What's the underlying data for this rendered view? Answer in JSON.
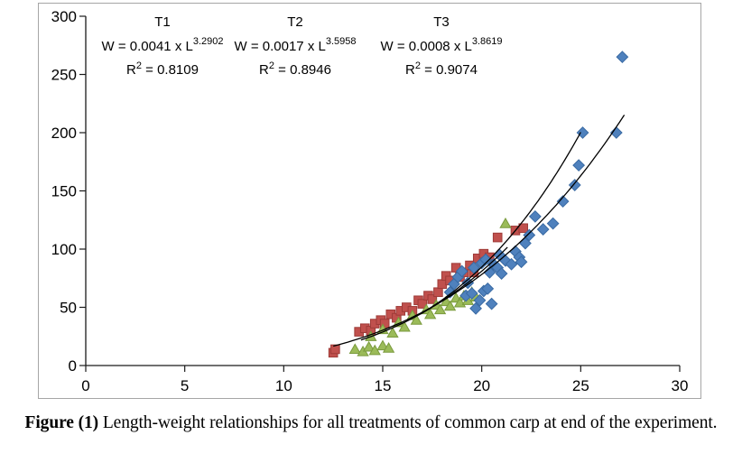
{
  "caption": {
    "label": "Figure (1)",
    "text": " Length-weight relationships for all treatments of common carp at end of the experiment."
  },
  "chart_data": {
    "type": "scatter",
    "title": "",
    "xlabel": "",
    "ylabel": "",
    "xlim": [
      0,
      30
    ],
    "ylim": [
      0,
      300
    ],
    "x_ticks": [
      0,
      5,
      10,
      15,
      20,
      25,
      30
    ],
    "y_ticks": [
      0,
      50,
      100,
      150,
      200,
      250,
      300
    ],
    "grid": false,
    "legend_position": "none",
    "axis_color": "#1a1a1a",
    "border_color": "#a6a6a6",
    "trendline_color": "#000000",
    "annotations": [
      {
        "label": "T1",
        "equation": "W = 0.0041 x L",
        "exponent": "3.2902",
        "r_label": "R",
        "r_sup": "2",
        "r_value": " = 0.8109"
      },
      {
        "label": "T2",
        "equation": "W = 0.0017 x L",
        "exponent": "3.5958",
        "r_label": "R",
        "r_sup": "2",
        "r_value": " = 0.8946"
      },
      {
        "label": "T3",
        "equation": "W = 0.0008 x L",
        "exponent": "3.8619",
        "r_label": "R",
        "r_sup": "2",
        "r_value": " = 0.9074"
      }
    ],
    "series": [
      {
        "name": "T1",
        "marker": "square",
        "color": "#C0504D",
        "edge_color": "#9E3B38",
        "points": [
          [
            12.5,
            11
          ],
          [
            12.6,
            14
          ],
          [
            13.8,
            29
          ],
          [
            14.1,
            32
          ],
          [
            14.4,
            30
          ],
          [
            14.6,
            36
          ],
          [
            14.9,
            39
          ],
          [
            15.1,
            36
          ],
          [
            15.4,
            44
          ],
          [
            15.7,
            41
          ],
          [
            15.9,
            47
          ],
          [
            16.2,
            50
          ],
          [
            16.5,
            47
          ],
          [
            16.8,
            56
          ],
          [
            17.0,
            53
          ],
          [
            17.3,
            60
          ],
          [
            17.5,
            57
          ],
          [
            17.8,
            63
          ],
          [
            18.0,
            70
          ],
          [
            18.2,
            77
          ],
          [
            18.4,
            73
          ],
          [
            18.7,
            84
          ],
          [
            18.9,
            76
          ],
          [
            19.1,
            80
          ],
          [
            19.4,
            86
          ],
          [
            19.6,
            80
          ],
          [
            19.8,
            92
          ],
          [
            20.1,
            96
          ],
          [
            20.4,
            93
          ],
          [
            20.8,
            110
          ],
          [
            21.7,
            116
          ],
          [
            22.1,
            118
          ]
        ]
      },
      {
        "name": "T2",
        "marker": "triangle",
        "color": "#9BBB59",
        "edge_color": "#7A9A3D",
        "points": [
          [
            13.6,
            14
          ],
          [
            14.0,
            12
          ],
          [
            14.3,
            16
          ],
          [
            14.6,
            13
          ],
          [
            15.0,
            17
          ],
          [
            15.3,
            15
          ],
          [
            14.4,
            25
          ],
          [
            15.0,
            31
          ],
          [
            15.5,
            28
          ],
          [
            15.8,
            37
          ],
          [
            16.1,
            33
          ],
          [
            16.5,
            43
          ],
          [
            16.7,
            39
          ],
          [
            17.2,
            48
          ],
          [
            17.4,
            44
          ],
          [
            17.7,
            52
          ],
          [
            17.9,
            48
          ],
          [
            18.2,
            55
          ],
          [
            18.4,
            51
          ],
          [
            18.7,
            58
          ],
          [
            18.9,
            54
          ],
          [
            19.1,
            60
          ],
          [
            19.3,
            56
          ],
          [
            19.5,
            63
          ],
          [
            19.7,
            59
          ],
          [
            21.2,
            122
          ]
        ]
      },
      {
        "name": "T3",
        "marker": "diamond",
        "color": "#4F81BD",
        "edge_color": "#396AA3",
        "points": [
          [
            18.4,
            63
          ],
          [
            18.6,
            70
          ],
          [
            18.8,
            76
          ],
          [
            19.0,
            81
          ],
          [
            19.2,
            60
          ],
          [
            19.3,
            71
          ],
          [
            19.5,
            62
          ],
          [
            19.6,
            84
          ],
          [
            19.7,
            49
          ],
          [
            19.9,
            56
          ],
          [
            20.0,
            88
          ],
          [
            20.1,
            64
          ],
          [
            20.2,
            91
          ],
          [
            20.3,
            66
          ],
          [
            20.4,
            80
          ],
          [
            20.5,
            53
          ],
          [
            20.6,
            87
          ],
          [
            20.8,
            84
          ],
          [
            20.9,
            95
          ],
          [
            21.0,
            79
          ],
          [
            21.2,
            90
          ],
          [
            21.5,
            87
          ],
          [
            21.7,
            98
          ],
          [
            21.9,
            93
          ],
          [
            22.0,
            89
          ],
          [
            22.2,
            105
          ],
          [
            22.4,
            112
          ],
          [
            22.7,
            128
          ],
          [
            23.1,
            117
          ],
          [
            23.6,
            122
          ],
          [
            24.1,
            141
          ],
          [
            24.7,
            155
          ],
          [
            24.9,
            172
          ],
          [
            25.1,
            200
          ],
          [
            26.8,
            200
          ],
          [
            27.1,
            265
          ]
        ]
      }
    ],
    "trendlines": [
      {
        "series": "T1",
        "type": "power",
        "a": 0.0041,
        "b": 3.2902,
        "x_range": [
          12.5,
          27.2
        ]
      },
      {
        "series": "T2",
        "type": "power",
        "a": 0.0017,
        "b": 3.5958,
        "x_range": [
          13.9,
          21.3
        ]
      },
      {
        "series": "T3",
        "type": "power",
        "a": 0.0008,
        "b": 3.8619,
        "x_range": [
          16.9,
          25.0
        ]
      }
    ]
  }
}
